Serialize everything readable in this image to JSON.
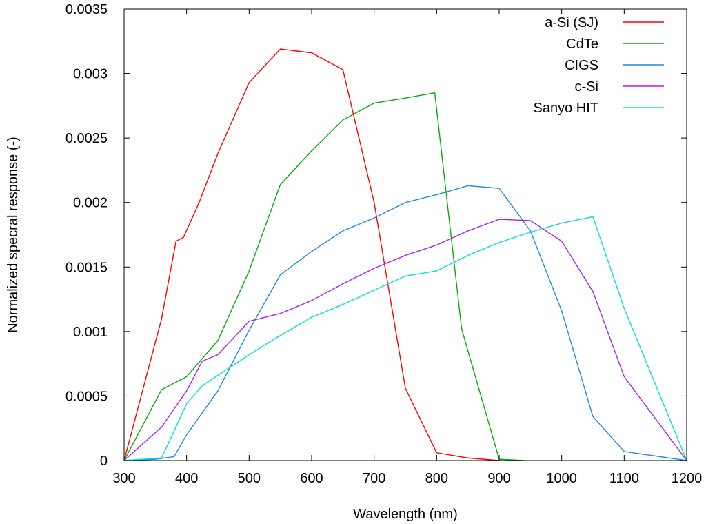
{
  "chart_data": {
    "type": "line",
    "title": "",
    "xlabel": "Wavelength (nm)",
    "ylabel": "Normalized specral response (-)",
    "xlim": [
      300,
      1200
    ],
    "ylim": [
      0,
      0.0035
    ],
    "xticks": [
      "300",
      "400",
      "500",
      "600",
      "700",
      "800",
      "900",
      "1000",
      "1100",
      "1200"
    ],
    "yticks": [
      "0",
      "0.0005",
      "0.001",
      "0.0015",
      "0.002",
      "0.0025",
      "0.003",
      "0.0035"
    ],
    "grid": false,
    "legend_position": "top-right",
    "series": [
      {
        "name": "a-Si (SJ)",
        "color": "#ff0000",
        "x": [
          300,
          360,
          383,
          395,
          420,
          450,
          500,
          550,
          600,
          650,
          700,
          750,
          800,
          850,
          900
        ],
        "y": [
          0,
          0.0011,
          0.0017,
          0.00173,
          0.002,
          0.00238,
          0.00293,
          0.00319,
          0.00316,
          0.00303,
          0.002,
          0.00056,
          6e-05,
          2e-05,
          0
        ]
      },
      {
        "name": "CdTe",
        "color": "#00b000",
        "x": [
          300,
          360,
          400,
          450,
          500,
          550,
          600,
          650,
          700,
          750,
          797,
          840,
          900,
          940
        ],
        "y": [
          0,
          0.00055,
          0.00065,
          0.00093,
          0.00147,
          0.00214,
          0.0024,
          0.00264,
          0.00277,
          0.00281,
          0.00285,
          0.00102,
          1e-05,
          0
        ]
      },
      {
        "name": "CIGS",
        "color": "#1e8ce6",
        "x": [
          300,
          350,
          380,
          400,
          450,
          500,
          550,
          600,
          650,
          700,
          750,
          800,
          850,
          900,
          950,
          1000,
          1050,
          1100,
          1200
        ],
        "y": [
          0,
          1e-05,
          3e-05,
          0.0002,
          0.00054,
          0.00101,
          0.00144,
          0.00162,
          0.00178,
          0.00188,
          0.002,
          0.00206,
          0.00213,
          0.00211,
          0.00178,
          0.00116,
          0.00034,
          7e-05,
          0
        ]
      },
      {
        "name": "c-Si",
        "color": "#aa22ee",
        "x": [
          300,
          360,
          400,
          425,
          450,
          500,
          550,
          600,
          650,
          700,
          750,
          800,
          850,
          900,
          950,
          1000,
          1050,
          1100,
          1200
        ],
        "y": [
          0,
          0.00026,
          0.00054,
          0.00077,
          0.00082,
          0.00108,
          0.00114,
          0.00124,
          0.00137,
          0.00149,
          0.00159,
          0.00167,
          0.00178,
          0.00187,
          0.00186,
          0.0017,
          0.00131,
          0.00065,
          0
        ]
      },
      {
        "name": "Sanyo HIT",
        "color": "#00e0e0",
        "x": [
          300,
          360,
          400,
          425,
          450,
          500,
          550,
          600,
          650,
          700,
          750,
          800,
          850,
          900,
          950,
          1000,
          1050,
          1100,
          1200
        ],
        "y": [
          0,
          2e-05,
          0.00044,
          0.00058,
          0.00066,
          0.00082,
          0.00097,
          0.00111,
          0.00121,
          0.00132,
          0.00143,
          0.00147,
          0.00159,
          0.00169,
          0.00177,
          0.00184,
          0.00189,
          0.00118,
          0
        ]
      }
    ]
  }
}
